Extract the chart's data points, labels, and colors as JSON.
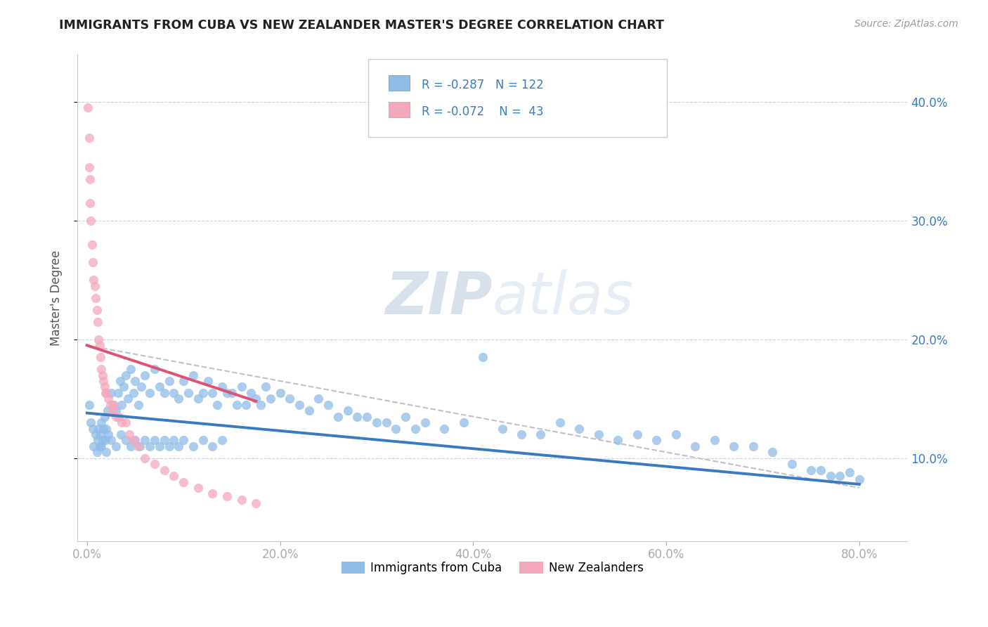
{
  "title": "IMMIGRANTS FROM CUBA VS NEW ZEALANDER MASTER'S DEGREE CORRELATION CHART",
  "source_text": "Source: ZipAtlas.com",
  "ylabel": "Master's Degree",
  "xlabel_ticks": [
    "0.0%",
    "20.0%",
    "40.0%",
    "60.0%",
    "80.0%"
  ],
  "xlabel_tick_vals": [
    0.0,
    0.2,
    0.4,
    0.6,
    0.8
  ],
  "ylabel_tick_vals": [
    0.1,
    0.2,
    0.3,
    0.4
  ],
  "xlim": [
    -0.01,
    0.85
  ],
  "ylim": [
    0.03,
    0.44
  ],
  "legend_labels": [
    "Immigrants from Cuba",
    "New Zealanders"
  ],
  "legend_R": [
    -0.287,
    -0.072
  ],
  "legend_N": [
    122,
    43
  ],
  "blue_color": "#90bce8",
  "pink_color": "#f4a8bc",
  "blue_line_color": "#3a7abf",
  "pink_line_color": "#e05070",
  "dashed_line_color": "#c0c0d0",
  "watermark_color": "#dde4f0",
  "blue_points_x": [
    0.002,
    0.004,
    0.006,
    0.007,
    0.009,
    0.01,
    0.011,
    0.012,
    0.013,
    0.014,
    0.015,
    0.016,
    0.017,
    0.018,
    0.019,
    0.02,
    0.021,
    0.022,
    0.025,
    0.027,
    0.03,
    0.032,
    0.034,
    0.036,
    0.038,
    0.04,
    0.042,
    0.045,
    0.048,
    0.05,
    0.053,
    0.056,
    0.06,
    0.065,
    0.07,
    0.075,
    0.08,
    0.085,
    0.09,
    0.095,
    0.1,
    0.105,
    0.11,
    0.115,
    0.12,
    0.125,
    0.13,
    0.135,
    0.14,
    0.145,
    0.15,
    0.155,
    0.16,
    0.165,
    0.17,
    0.175,
    0.18,
    0.185,
    0.19,
    0.2,
    0.21,
    0.22,
    0.23,
    0.24,
    0.25,
    0.26,
    0.27,
    0.28,
    0.29,
    0.3,
    0.31,
    0.32,
    0.33,
    0.34,
    0.35,
    0.37,
    0.39,
    0.41,
    0.43,
    0.45,
    0.47,
    0.49,
    0.51,
    0.53,
    0.55,
    0.57,
    0.59,
    0.61,
    0.63,
    0.65,
    0.67,
    0.69,
    0.71,
    0.73,
    0.75,
    0.76,
    0.77,
    0.78,
    0.79,
    0.8,
    0.015,
    0.02,
    0.025,
    0.03,
    0.035,
    0.04,
    0.045,
    0.05,
    0.055,
    0.06,
    0.065,
    0.07,
    0.075,
    0.08,
    0.085,
    0.09,
    0.095,
    0.1,
    0.11,
    0.12,
    0.13,
    0.14
  ],
  "blue_points_y": [
    0.145,
    0.13,
    0.125,
    0.11,
    0.12,
    0.105,
    0.115,
    0.125,
    0.11,
    0.12,
    0.13,
    0.115,
    0.125,
    0.135,
    0.115,
    0.125,
    0.14,
    0.12,
    0.155,
    0.145,
    0.14,
    0.155,
    0.165,
    0.145,
    0.16,
    0.17,
    0.15,
    0.175,
    0.155,
    0.165,
    0.145,
    0.16,
    0.17,
    0.155,
    0.175,
    0.16,
    0.155,
    0.165,
    0.155,
    0.15,
    0.165,
    0.155,
    0.17,
    0.15,
    0.155,
    0.165,
    0.155,
    0.145,
    0.16,
    0.155,
    0.155,
    0.145,
    0.16,
    0.145,
    0.155,
    0.15,
    0.145,
    0.16,
    0.15,
    0.155,
    0.15,
    0.145,
    0.14,
    0.15,
    0.145,
    0.135,
    0.14,
    0.135,
    0.135,
    0.13,
    0.13,
    0.125,
    0.135,
    0.125,
    0.13,
    0.125,
    0.13,
    0.185,
    0.125,
    0.12,
    0.12,
    0.13,
    0.125,
    0.12,
    0.115,
    0.12,
    0.115,
    0.12,
    0.11,
    0.115,
    0.11,
    0.11,
    0.105,
    0.095,
    0.09,
    0.09,
    0.085,
    0.085,
    0.088,
    0.082,
    0.11,
    0.105,
    0.115,
    0.11,
    0.12,
    0.115,
    0.11,
    0.115,
    0.11,
    0.115,
    0.11,
    0.115,
    0.11,
    0.115,
    0.11,
    0.115,
    0.11,
    0.115,
    0.11,
    0.115,
    0.11,
    0.115
  ],
  "pink_points_x": [
    0.001,
    0.002,
    0.002,
    0.003,
    0.003,
    0.004,
    0.005,
    0.006,
    0.007,
    0.008,
    0.009,
    0.01,
    0.011,
    0.012,
    0.013,
    0.014,
    0.015,
    0.016,
    0.017,
    0.018,
    0.019,
    0.02,
    0.022,
    0.024,
    0.026,
    0.028,
    0.03,
    0.033,
    0.036,
    0.04,
    0.044,
    0.048,
    0.053,
    0.06,
    0.07,
    0.08,
    0.09,
    0.1,
    0.115,
    0.13,
    0.145,
    0.16,
    0.175
  ],
  "pink_points_y": [
    0.395,
    0.37,
    0.345,
    0.335,
    0.315,
    0.3,
    0.28,
    0.265,
    0.25,
    0.245,
    0.235,
    0.225,
    0.215,
    0.2,
    0.195,
    0.185,
    0.175,
    0.17,
    0.165,
    0.16,
    0.155,
    0.155,
    0.15,
    0.145,
    0.14,
    0.145,
    0.135,
    0.135,
    0.13,
    0.13,
    0.12,
    0.115,
    0.11,
    0.1,
    0.095,
    0.09,
    0.085,
    0.08,
    0.075,
    0.07,
    0.068,
    0.065,
    0.062
  ],
  "blue_trend_x": [
    0.0,
    0.8
  ],
  "blue_trend_y": [
    0.138,
    0.078
  ],
  "pink_trend_x": [
    0.0,
    0.175
  ],
  "pink_trend_y": [
    0.195,
    0.148
  ],
  "dashed_trend_x": [
    0.0,
    0.8
  ],
  "dashed_trend_y": [
    0.195,
    0.075
  ]
}
